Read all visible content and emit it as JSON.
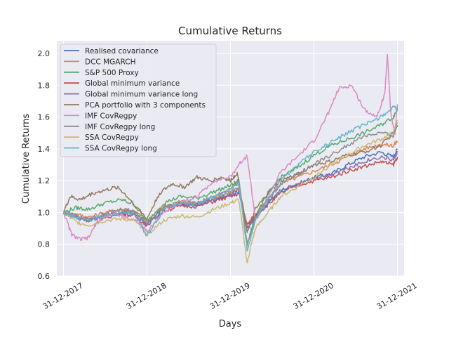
{
  "chart_data": {
    "type": "line",
    "title": "Cumulative Returns",
    "xlabel": "Days",
    "ylabel": "Cumulative Returns",
    "xlim": [
      2017.92,
      2022.08
    ],
    "ylim": [
      0.6,
      2.08
    ],
    "x_ticks": [
      {
        "value": 2018.0,
        "label": "31-12-2017"
      },
      {
        "value": 2019.0,
        "label": "31-12-2018"
      },
      {
        "value": 2020.0,
        "label": "31-12-2019"
      },
      {
        "value": 2021.0,
        "label": "31-12-2020"
      },
      {
        "value": 2022.0,
        "label": "31-12-2021"
      }
    ],
    "y_ticks": [
      0.6,
      0.8,
      1.0,
      1.2,
      1.4,
      1.6,
      1.8,
      2.0
    ],
    "grid": true,
    "legend_position": "top-left",
    "series": [
      {
        "name": "Realised covariance",
        "color": "#4c72b0",
        "x": [
          2018.0,
          2018.15,
          2018.3,
          2018.5,
          2018.7,
          2018.85,
          2019.0,
          2019.2,
          2019.4,
          2019.6,
          2019.8,
          2020.0,
          2020.1,
          2020.2,
          2020.3,
          2020.45,
          2020.6,
          2020.8,
          2021.0,
          2021.2,
          2021.4,
          2021.6,
          2021.8,
          2021.95,
          2022.0
        ],
        "y": [
          1.0,
          0.98,
          0.96,
          0.99,
          1.0,
          1.0,
          0.93,
          1.03,
          1.06,
          1.05,
          1.08,
          1.12,
          1.15,
          0.9,
          0.97,
          1.06,
          1.14,
          1.18,
          1.22,
          1.24,
          1.3,
          1.35,
          1.38,
          1.35,
          1.4
        ]
      },
      {
        "name": "DCC MGARCH",
        "color": "#dd8452",
        "x": [
          2018.0,
          2018.15,
          2018.3,
          2018.5,
          2018.7,
          2018.85,
          2019.0,
          2019.2,
          2019.4,
          2019.6,
          2019.8,
          2020.0,
          2020.1,
          2020.2,
          2020.3,
          2020.45,
          2020.6,
          2020.8,
          2021.0,
          2021.2,
          2021.4,
          2021.6,
          2021.8,
          2021.95,
          2022.0
        ],
        "y": [
          1.0,
          0.99,
          0.97,
          1.0,
          1.02,
          1.01,
          0.95,
          1.04,
          1.07,
          1.06,
          1.09,
          1.13,
          1.15,
          0.92,
          0.99,
          1.08,
          1.18,
          1.22,
          1.26,
          1.3,
          1.35,
          1.4,
          1.43,
          1.42,
          1.45
        ]
      },
      {
        "name": "S&P 500 Proxy",
        "color": "#55a868",
        "x": [
          2018.0,
          2018.15,
          2018.3,
          2018.5,
          2018.7,
          2018.85,
          2019.0,
          2019.2,
          2019.4,
          2019.6,
          2019.8,
          2020.0,
          2020.1,
          2020.2,
          2020.3,
          2020.45,
          2020.6,
          2020.8,
          2021.0,
          2021.2,
          2021.4,
          2021.6,
          2021.8,
          2021.95,
          2022.0
        ],
        "y": [
          1.0,
          1.03,
          1.02,
          1.06,
          1.08,
          1.05,
          0.94,
          1.06,
          1.1,
          1.09,
          1.13,
          1.17,
          1.2,
          0.8,
          0.98,
          1.12,
          1.22,
          1.28,
          1.36,
          1.42,
          1.46,
          1.5,
          1.55,
          1.6,
          1.65
        ]
      },
      {
        "name": "Global minimum variance",
        "color": "#c44e52",
        "x": [
          2018.0,
          2018.15,
          2018.3,
          2018.5,
          2018.7,
          2018.85,
          2019.0,
          2019.2,
          2019.4,
          2019.6,
          2019.8,
          2020.0,
          2020.1,
          2020.2,
          2020.3,
          2020.45,
          2020.6,
          2020.8,
          2021.0,
          2021.2,
          2021.4,
          2021.6,
          2021.8,
          2021.95,
          2022.0
        ],
        "y": [
          1.0,
          0.97,
          0.95,
          0.97,
          0.99,
          0.98,
          0.92,
          1.01,
          1.04,
          1.04,
          1.07,
          1.1,
          1.12,
          0.92,
          0.98,
          1.05,
          1.12,
          1.17,
          1.2,
          1.22,
          1.26,
          1.29,
          1.32,
          1.3,
          1.35
        ]
      },
      {
        "name": "Global minimum variance long",
        "color": "#8172b3",
        "x": [
          2018.0,
          2018.15,
          2018.3,
          2018.5,
          2018.7,
          2018.85,
          2019.0,
          2019.2,
          2019.4,
          2019.6,
          2019.8,
          2020.0,
          2020.1,
          2020.2,
          2020.3,
          2020.45,
          2020.6,
          2020.8,
          2021.0,
          2021.2,
          2021.4,
          2021.6,
          2021.8,
          2021.95,
          2022.0
        ],
        "y": [
          1.0,
          0.97,
          0.95,
          0.98,
          1.0,
          0.99,
          0.92,
          1.02,
          1.05,
          1.05,
          1.08,
          1.11,
          1.13,
          0.9,
          0.97,
          1.05,
          1.13,
          1.18,
          1.22,
          1.24,
          1.28,
          1.32,
          1.35,
          1.33,
          1.38
        ]
      },
      {
        "name": "PCA portfolio with 3 components",
        "color": "#937860",
        "x": [
          2018.0,
          2018.08,
          2018.2,
          2018.35,
          2018.5,
          2018.65,
          2018.8,
          2019.0,
          2019.15,
          2019.3,
          2019.45,
          2019.6,
          2019.75,
          2019.9,
          2020.0,
          2020.08,
          2020.2,
          2020.3,
          2020.45,
          2020.6,
          2020.8,
          2021.0,
          2021.2,
          2021.4,
          2021.6,
          2021.8,
          2021.95,
          2022.0
        ],
        "y": [
          1.0,
          1.1,
          1.08,
          1.12,
          1.14,
          1.16,
          1.08,
          0.96,
          1.12,
          1.18,
          1.16,
          1.22,
          1.2,
          1.22,
          1.2,
          1.25,
          0.88,
          1.02,
          1.12,
          1.2,
          1.24,
          1.3,
          1.32,
          1.36,
          1.38,
          1.42,
          1.5,
          1.56
        ]
      },
      {
        "name": "IMF CovRegpy",
        "color": "#da8bc3",
        "x": [
          2018.0,
          2018.1,
          2018.2,
          2018.3,
          2018.4,
          2018.5,
          2018.6,
          2018.75,
          2018.9,
          2019.0,
          2019.2,
          2019.4,
          2019.6,
          2019.8,
          2020.0,
          2020.1,
          2020.2,
          2020.3,
          2020.45,
          2020.6,
          2020.8,
          2021.0,
          2021.15,
          2021.3,
          2021.45,
          2021.6,
          2021.75,
          2021.85,
          2021.88,
          2021.92,
          2021.97,
          2022.0
        ],
        "y": [
          1.0,
          0.86,
          0.83,
          0.84,
          0.94,
          0.97,
          1.0,
          0.97,
          0.94,
          0.88,
          1.0,
          1.06,
          1.1,
          1.2,
          1.22,
          1.3,
          1.36,
          0.95,
          1.1,
          1.25,
          1.35,
          1.45,
          1.6,
          1.78,
          1.8,
          1.65,
          1.6,
          1.75,
          2.0,
          1.62,
          1.5,
          1.68
        ]
      },
      {
        "name": "IMF CovRegpy long",
        "color": "#8c8c8c",
        "x": [
          2018.0,
          2018.15,
          2018.3,
          2018.5,
          2018.7,
          2018.85,
          2019.0,
          2019.2,
          2019.4,
          2019.6,
          2019.8,
          2020.0,
          2020.1,
          2020.2,
          2020.3,
          2020.45,
          2020.6,
          2020.8,
          2021.0,
          2021.2,
          2021.4,
          2021.6,
          2021.8,
          2021.95,
          2022.0
        ],
        "y": [
          1.0,
          0.98,
          0.96,
          0.99,
          1.02,
          1.01,
          0.93,
          1.03,
          1.06,
          1.06,
          1.1,
          1.15,
          1.2,
          0.8,
          0.96,
          1.08,
          1.18,
          1.24,
          1.3,
          1.36,
          1.42,
          1.48,
          1.5,
          1.48,
          1.55
        ]
      },
      {
        "name": "SSA CovRegpy",
        "color": "#ccb974",
        "x": [
          2018.0,
          2018.15,
          2018.3,
          2018.5,
          2018.7,
          2018.85,
          2019.0,
          2019.2,
          2019.4,
          2019.6,
          2019.8,
          2020.0,
          2020.1,
          2020.2,
          2020.25,
          2020.3,
          2020.45,
          2020.6,
          2020.8,
          2021.0,
          2021.2,
          2021.4,
          2021.6,
          2021.8,
          2021.95,
          2022.0
        ],
        "y": [
          1.0,
          0.94,
          0.92,
          0.95,
          0.96,
          0.95,
          0.86,
          0.95,
          0.98,
          0.97,
          1.02,
          1.06,
          1.08,
          0.68,
          0.8,
          0.9,
          1.0,
          1.1,
          1.16,
          1.22,
          1.3,
          1.36,
          1.42,
          1.46,
          1.5,
          1.58
        ]
      },
      {
        "name": "SSA CovRegpy long",
        "color": "#64b5cd",
        "x": [
          2018.0,
          2018.15,
          2018.3,
          2018.5,
          2018.7,
          2018.85,
          2019.0,
          2019.2,
          2019.4,
          2019.6,
          2019.8,
          2020.0,
          2020.1,
          2020.2,
          2020.3,
          2020.45,
          2020.6,
          2020.8,
          2021.0,
          2021.2,
          2021.4,
          2021.6,
          2021.8,
          2021.95,
          2022.0
        ],
        "y": [
          1.0,
          0.97,
          0.95,
          0.98,
          1.0,
          0.99,
          0.85,
          1.02,
          1.06,
          1.05,
          1.1,
          1.14,
          1.18,
          0.76,
          0.95,
          1.08,
          1.2,
          1.3,
          1.38,
          1.44,
          1.5,
          1.55,
          1.6,
          1.66,
          1.65
        ]
      }
    ]
  }
}
